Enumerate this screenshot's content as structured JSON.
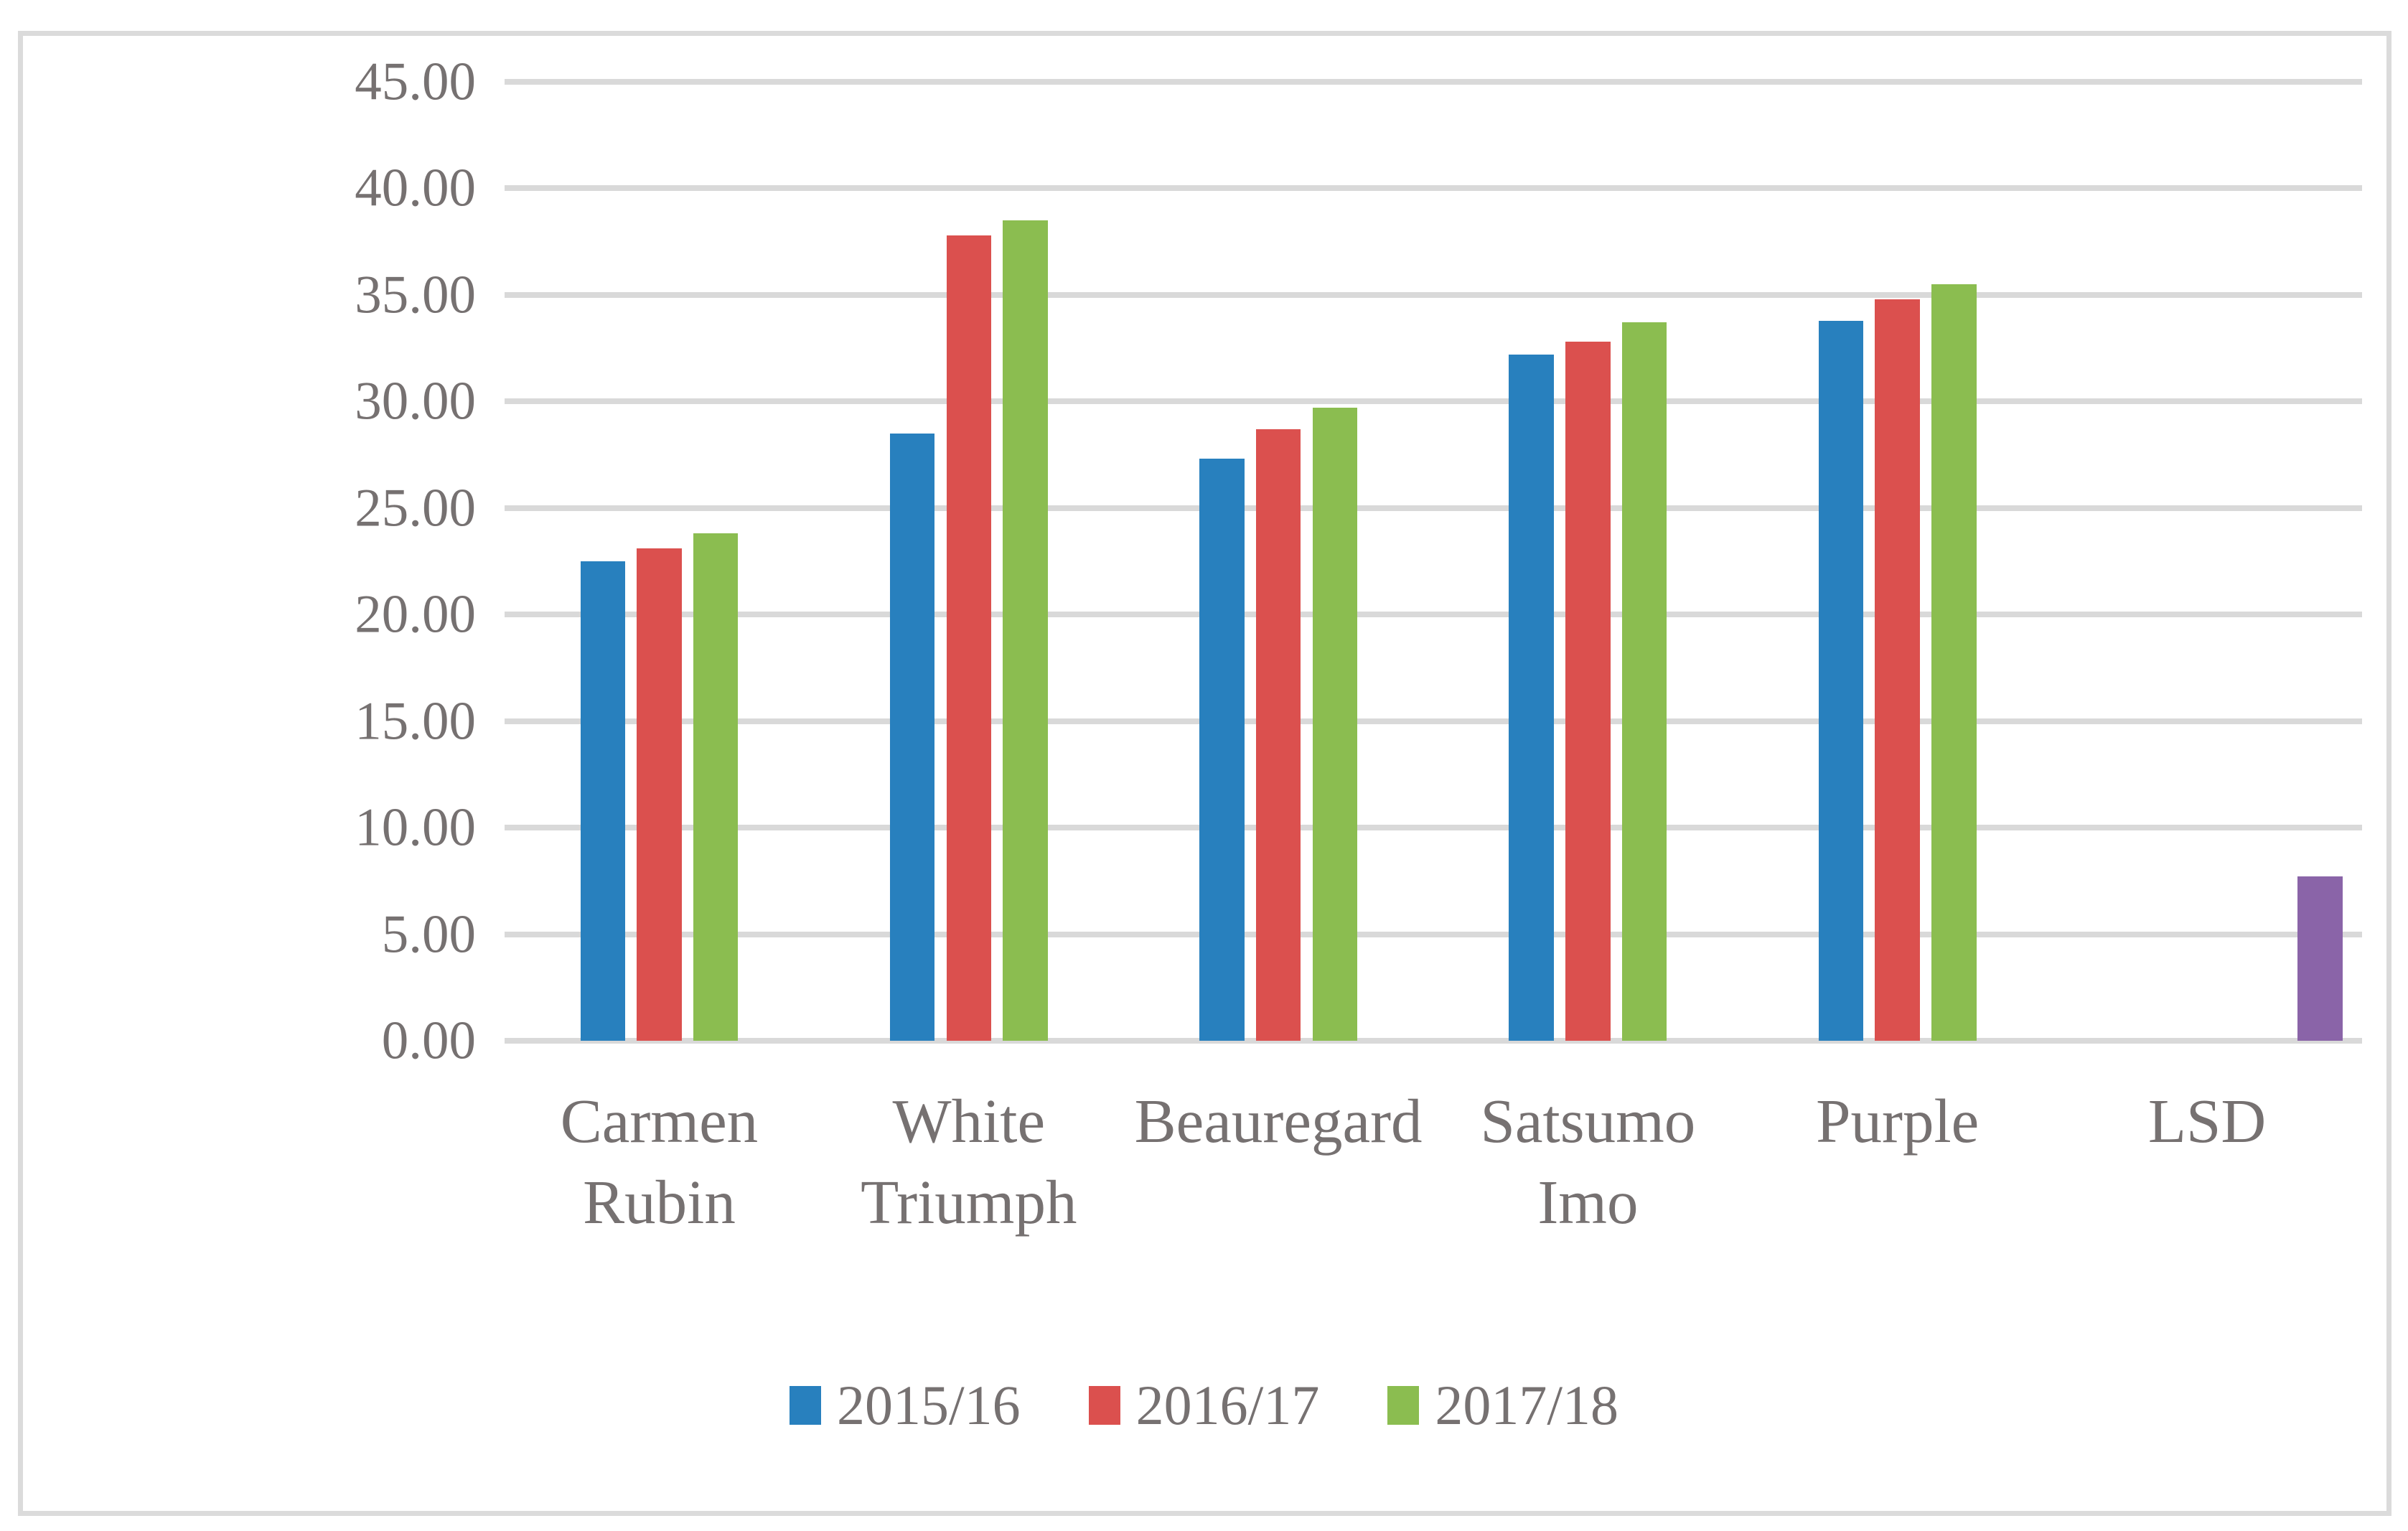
{
  "chart_data": {
    "type": "bar",
    "categories": [
      "Carmen Rubin",
      "White Triumph",
      "Beauregard",
      "Satsumo Imo",
      "Purple",
      "LSD"
    ],
    "series": [
      {
        "name": "2015/16",
        "color": "#2880BE",
        "values": [
          22.5,
          28.5,
          27.3,
          32.2,
          33.8,
          null
        ]
      },
      {
        "name": "2016/17",
        "color": "#DB504E",
        "values": [
          23.1,
          37.8,
          28.7,
          32.8,
          34.8,
          null
        ]
      },
      {
        "name": "2017/18",
        "color": "#8BBD50",
        "values": [
          23.8,
          38.5,
          29.7,
          33.7,
          35.5,
          null
        ]
      },
      {
        "name": "LSD",
        "color": "#8A64A8",
        "values": [
          null,
          null,
          null,
          null,
          null,
          7.7
        ],
        "in_legend": false
      }
    ],
    "title": "",
    "xlabel": "",
    "ylabel": "",
    "ylim": [
      0,
      45
    ],
    "ytick_step": 5,
    "ytick_labels": [
      "0.00",
      "5.00",
      "10.00",
      "15.00",
      "20.00",
      "25.00",
      "30.00",
      "35.00",
      "40.00",
      "45.00"
    ],
    "grid": true,
    "legend_entries": [
      "2015/16",
      "2016/17",
      "2017/18"
    ],
    "legend_position": "bottom-center"
  },
  "style": {
    "text_color": "#767171",
    "gridline_color": "#D9D9D9",
    "frame_border_color": "#DBDBDB",
    "background": "#FFFFFF"
  }
}
